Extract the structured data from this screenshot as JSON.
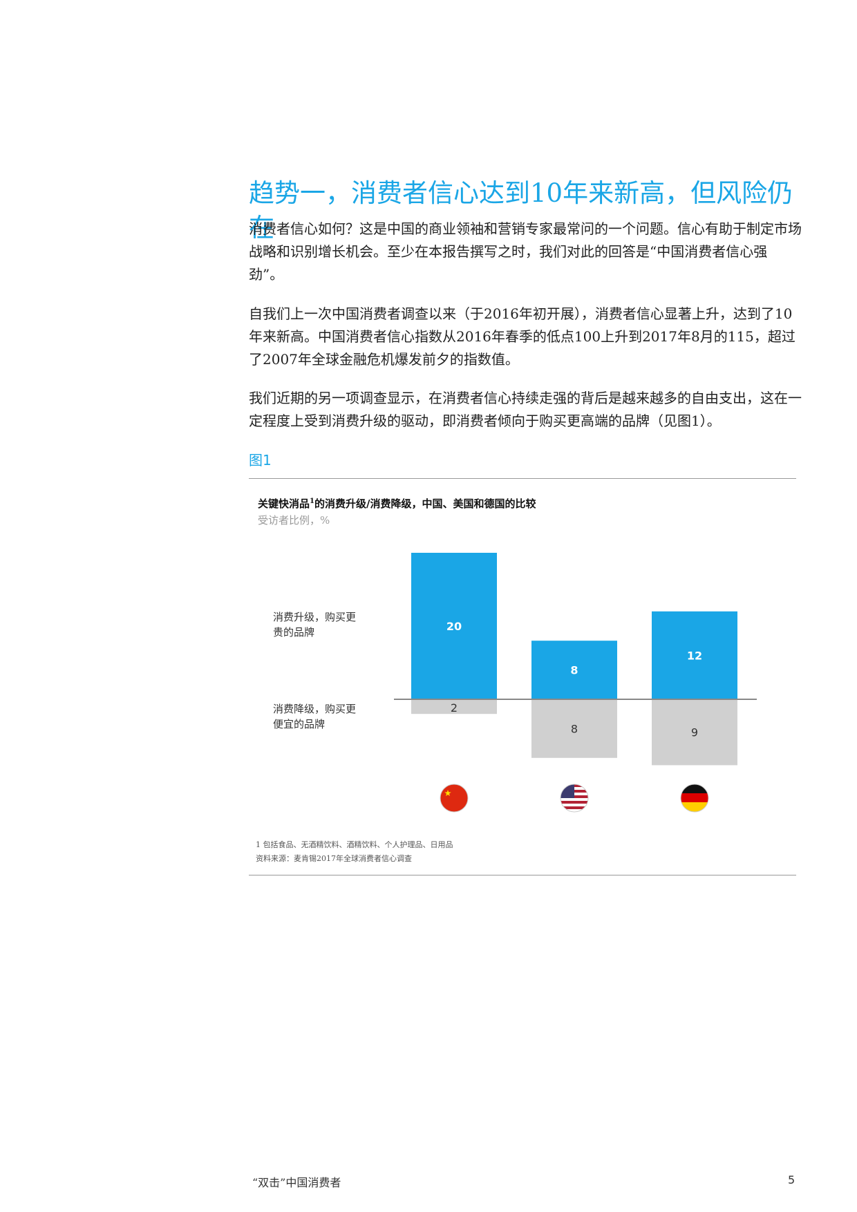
{
  "heading": "趋势一，消费者信心达到10年来新高，但风险仍在",
  "paragraphs": [
    "消费者信心如何？这是中国的商业领袖和营销专家最常问的一个问题。信心有助于制定市场战略和识别增长机会。至少在本报告撰写之时，我们对此的回答是“中国消费者信心强劲”。",
    "自我们上一次中国消费者调查以来（于2016年初开展），消费者信心显著上升，达到了10年来新高。中国消费者信心指数从2016年春季的低点100上升到2017年8月的115，超过了2007年全球金融危机爆发前夕的指数值。",
    "我们近期的另一项调查显示，在消费者信心持续走强的背后是越来越多的自由支出，这在一定程度上受到消费升级的驱动，即消费者倾向于购买更高端的品牌（见图1）。"
  ],
  "figure_label": "图1",
  "chart_data": {
    "type": "bar",
    "title_main": "关键快消品",
    "title_sup": "1",
    "title_rest": "的消费升级/消费降级，中国、美国和德国的比较",
    "subtitle": "受访者比例，%",
    "categories": [
      "中国",
      "美国",
      "德国"
    ],
    "flag_icons": [
      "china-flag-icon",
      "usa-flag-icon",
      "germany-flag-icon"
    ],
    "series": [
      {
        "name": "消费升级，购买更贵的品牌",
        "values": [
          20,
          8,
          12
        ],
        "color": "#1aa6e6"
      },
      {
        "name": "消费降级，购买更便宜的品牌",
        "values": [
          2,
          8,
          9
        ],
        "color": "#d0d0d0"
      }
    ],
    "labels": {
      "up_line1": "消费升级，购买更",
      "up_line2": "贵的品牌",
      "down_line1": "消费降级，购买更",
      "down_line2": "便宜的品牌"
    }
  },
  "footnotes": [
    "1 包括食品、无酒精饮料、酒精饮料、个人护理品、日用品",
    "资料来源：麦肯锡2017年全球消费者信心调查"
  ],
  "footer": {
    "title": "“双击”中国消费者",
    "page_number": "5"
  }
}
